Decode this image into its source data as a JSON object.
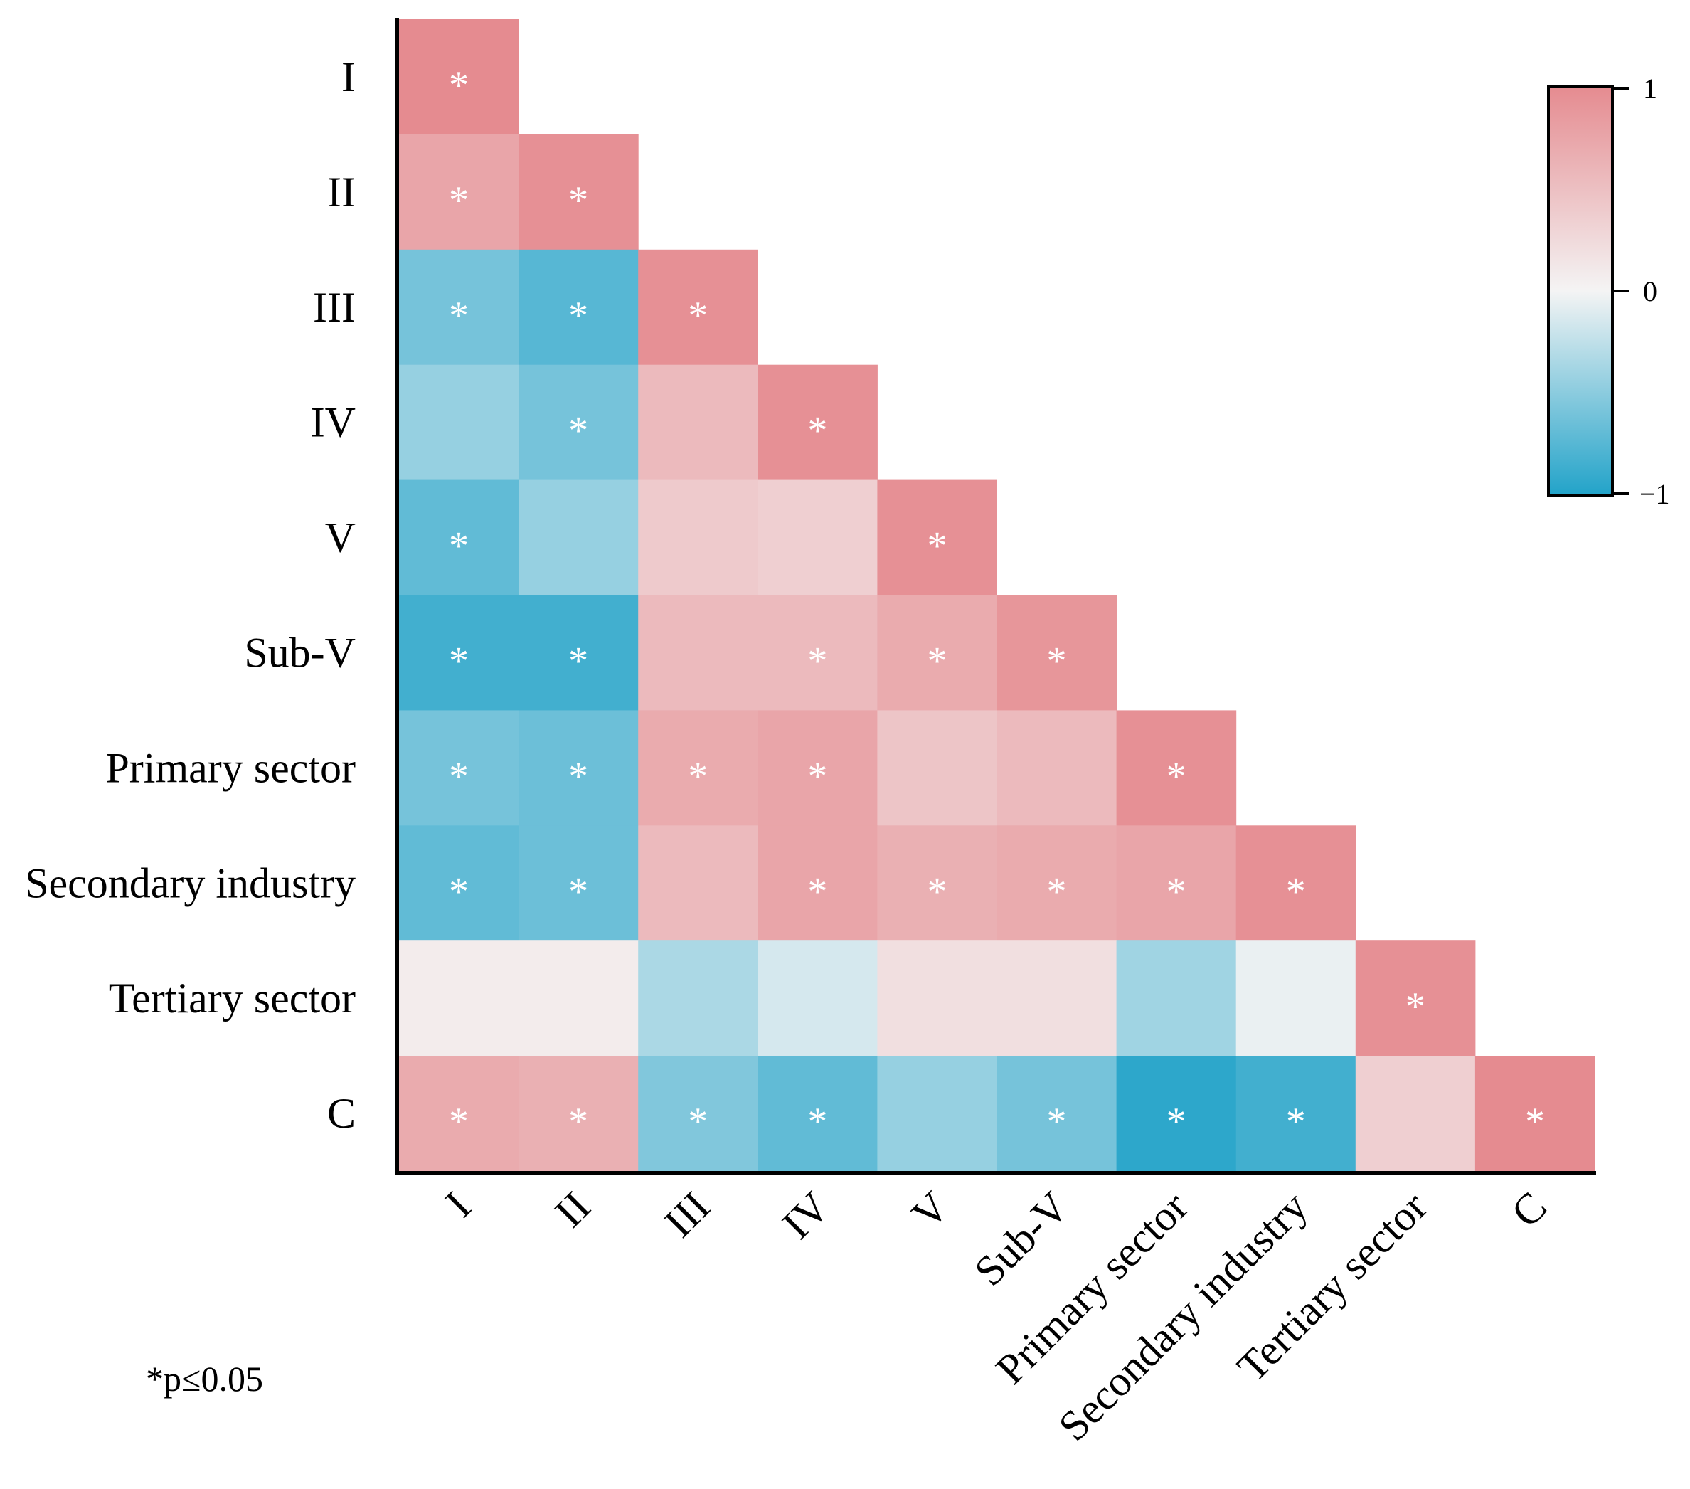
{
  "chart_data": {
    "type": "heatmap",
    "title": "",
    "variables": [
      "I",
      "II",
      "III",
      "IV",
      "V",
      "Sub-V",
      "Primary sector",
      "Secondary industry",
      "Tertiary sector",
      "C"
    ],
    "matrix_lower": [
      [
        1.0
      ],
      [
        0.75,
        0.95
      ],
      [
        -0.6,
        -0.75,
        0.95
      ],
      [
        -0.45,
        -0.6,
        0.55,
        0.95
      ],
      [
        -0.7,
        -0.45,
        0.4,
        0.35,
        0.95
      ],
      [
        -0.85,
        -0.85,
        0.55,
        0.55,
        0.7,
        0.9
      ],
      [
        -0.6,
        -0.65,
        0.7,
        0.75,
        0.45,
        0.55,
        0.95
      ],
      [
        -0.7,
        -0.65,
        0.55,
        0.75,
        0.65,
        0.7,
        0.75,
        0.95
      ],
      [
        0.08,
        0.08,
        -0.35,
        -0.15,
        0.2,
        0.2,
        -0.4,
        -0.05,
        0.95
      ],
      [
        0.7,
        0.65,
        -0.55,
        -0.7,
        -0.45,
        -0.6,
        -0.95,
        -0.85,
        0.35,
        1.0
      ]
    ],
    "significant": [
      [
        true
      ],
      [
        true,
        true
      ],
      [
        true,
        true,
        true
      ],
      [
        false,
        true,
        false,
        true
      ],
      [
        true,
        false,
        false,
        false,
        true
      ],
      [
        true,
        true,
        false,
        true,
        true,
        true
      ],
      [
        true,
        true,
        true,
        true,
        false,
        false,
        true
      ],
      [
        true,
        true,
        false,
        true,
        true,
        true,
        true,
        true
      ],
      [
        false,
        false,
        false,
        false,
        false,
        false,
        false,
        false,
        true
      ],
      [
        true,
        true,
        true,
        true,
        false,
        true,
        true,
        true,
        false,
        true
      ]
    ],
    "star_symbol": "*",
    "colorbar": {
      "min": -1,
      "max": 1,
      "ticks": [
        "1",
        "0",
        "−1"
      ],
      "colors": {
        "positive": "#e58b90",
        "zero": "#f4f4f4",
        "negative": "#22a3c9"
      }
    },
    "note": "*p≤0.05"
  }
}
